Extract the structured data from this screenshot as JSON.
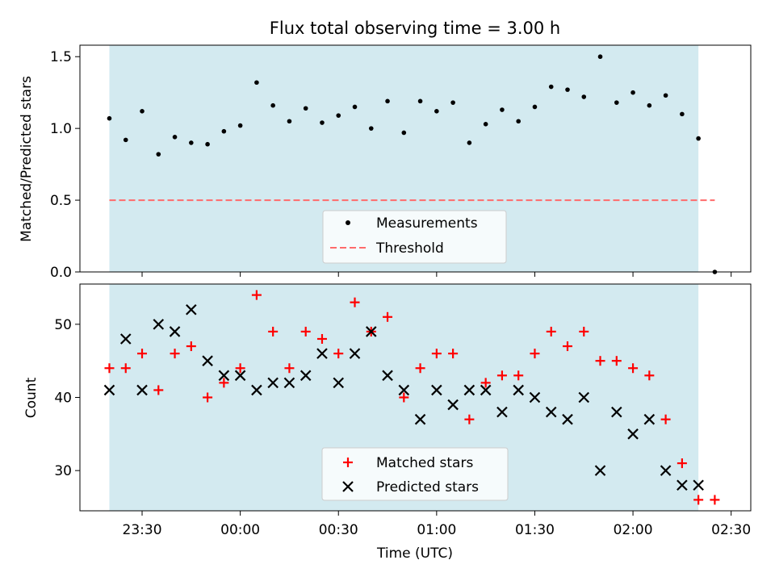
{
  "title": "Flux total observing time = 3.00 h",
  "colors": {
    "band": "#d3eaf0",
    "measurement": "#000000",
    "threshold": "#ff6b6b",
    "matched": "#ff0000",
    "predicted": "#000000"
  },
  "chart_data": [
    {
      "type": "scatter",
      "panel": "top",
      "ylabel": "Matched/Predicted stars",
      "ylim": [
        0,
        1.58
      ],
      "yticks": [
        "0.0",
        "0.5",
        "1.0",
        "1.5"
      ],
      "legend": {
        "location": "lower center",
        "entries": [
          "Measurements",
          "Threshold"
        ]
      },
      "threshold": {
        "name": "Threshold",
        "value": 0.5,
        "x_start": "23:20",
        "x_end": "02:25"
      },
      "series": [
        {
          "name": "Measurements",
          "marker": "dot",
          "x": [
            "23:20",
            "23:25",
            "23:30",
            "23:35",
            "23:40",
            "23:45",
            "23:50",
            "23:55",
            "00:00",
            "00:05",
            "00:10",
            "00:15",
            "00:20",
            "00:25",
            "00:30",
            "00:35",
            "00:40",
            "00:45",
            "00:50",
            "00:55",
            "01:00",
            "01:05",
            "01:10",
            "01:15",
            "01:20",
            "01:25",
            "01:30",
            "01:35",
            "01:40",
            "01:45",
            "01:50",
            "01:55",
            "02:00",
            "02:05",
            "02:10",
            "02:15",
            "02:20",
            "02:25"
          ],
          "values": [
            1.07,
            0.92,
            1.12,
            0.82,
            0.94,
            0.9,
            0.89,
            0.98,
            1.02,
            1.32,
            1.16,
            1.05,
            1.14,
            1.04,
            1.09,
            1.15,
            1.0,
            1.19,
            0.97,
            1.19,
            1.12,
            1.18,
            0.9,
            1.03,
            1.13,
            1.05,
            1.15,
            1.29,
            1.27,
            1.22,
            1.5,
            1.18,
            1.25,
            1.16,
            1.23,
            1.1,
            0.93,
            0.0
          ]
        }
      ]
    },
    {
      "type": "scatter",
      "panel": "bottom",
      "xlabel": "Time (UTC)",
      "ylabel": "Count",
      "ylim": [
        24.5,
        55.5
      ],
      "yticks": [
        "30",
        "40",
        "50"
      ],
      "xticks": [
        "23:30",
        "00:00",
        "00:30",
        "01:00",
        "01:30",
        "02:00",
        "02:30"
      ],
      "x_range": [
        "23:11",
        "02:36"
      ],
      "shaded_span": [
        "23:20",
        "02:20"
      ],
      "legend": {
        "location": "lower center",
        "entries": [
          "Matched stars",
          "Predicted stars"
        ]
      },
      "series": [
        {
          "name": "Matched stars",
          "marker": "plus",
          "x": [
            "23:20",
            "23:25",
            "23:30",
            "23:35",
            "23:40",
            "23:45",
            "23:50",
            "23:55",
            "00:00",
            "00:05",
            "00:10",
            "00:15",
            "00:20",
            "00:25",
            "00:30",
            "00:35",
            "00:40",
            "00:45",
            "00:50",
            "00:55",
            "01:00",
            "01:05",
            "01:10",
            "01:15",
            "01:20",
            "01:25",
            "01:30",
            "01:35",
            "01:40",
            "01:45",
            "01:50",
            "01:55",
            "02:00",
            "02:05",
            "02:10",
            "02:15",
            "02:20",
            "02:25"
          ],
          "values": [
            44,
            44,
            46,
            41,
            46,
            47,
            40,
            42,
            44,
            54,
            49,
            44,
            49,
            48,
            46,
            53,
            49,
            51,
            40,
            44,
            46,
            46,
            37,
            42,
            43,
            43,
            46,
            49,
            47,
            49,
            45,
            45,
            44,
            43,
            37,
            31,
            26,
            26
          ]
        },
        {
          "name": "Predicted stars",
          "marker": "x",
          "x": [
            "23:20",
            "23:25",
            "23:30",
            "23:35",
            "23:40",
            "23:45",
            "23:50",
            "23:55",
            "00:00",
            "00:05",
            "00:10",
            "00:15",
            "00:20",
            "00:25",
            "00:30",
            "00:35",
            "00:40",
            "00:45",
            "00:50",
            "00:55",
            "01:00",
            "01:05",
            "01:10",
            "01:15",
            "01:20",
            "01:25",
            "01:30",
            "01:35",
            "01:40",
            "01:45",
            "01:50",
            "01:55",
            "02:00",
            "02:05",
            "02:10",
            "02:15",
            "02:20"
          ],
          "values": [
            41,
            48,
            41,
            50,
            49,
            52,
            45,
            43,
            43,
            41,
            42,
            42,
            43,
            46,
            42,
            46,
            49,
            43,
            41,
            37,
            41,
            39,
            41,
            41,
            38,
            41,
            40,
            38,
            37,
            40,
            30,
            38,
            35,
            37,
            30,
            28,
            28
          ]
        }
      ]
    }
  ]
}
